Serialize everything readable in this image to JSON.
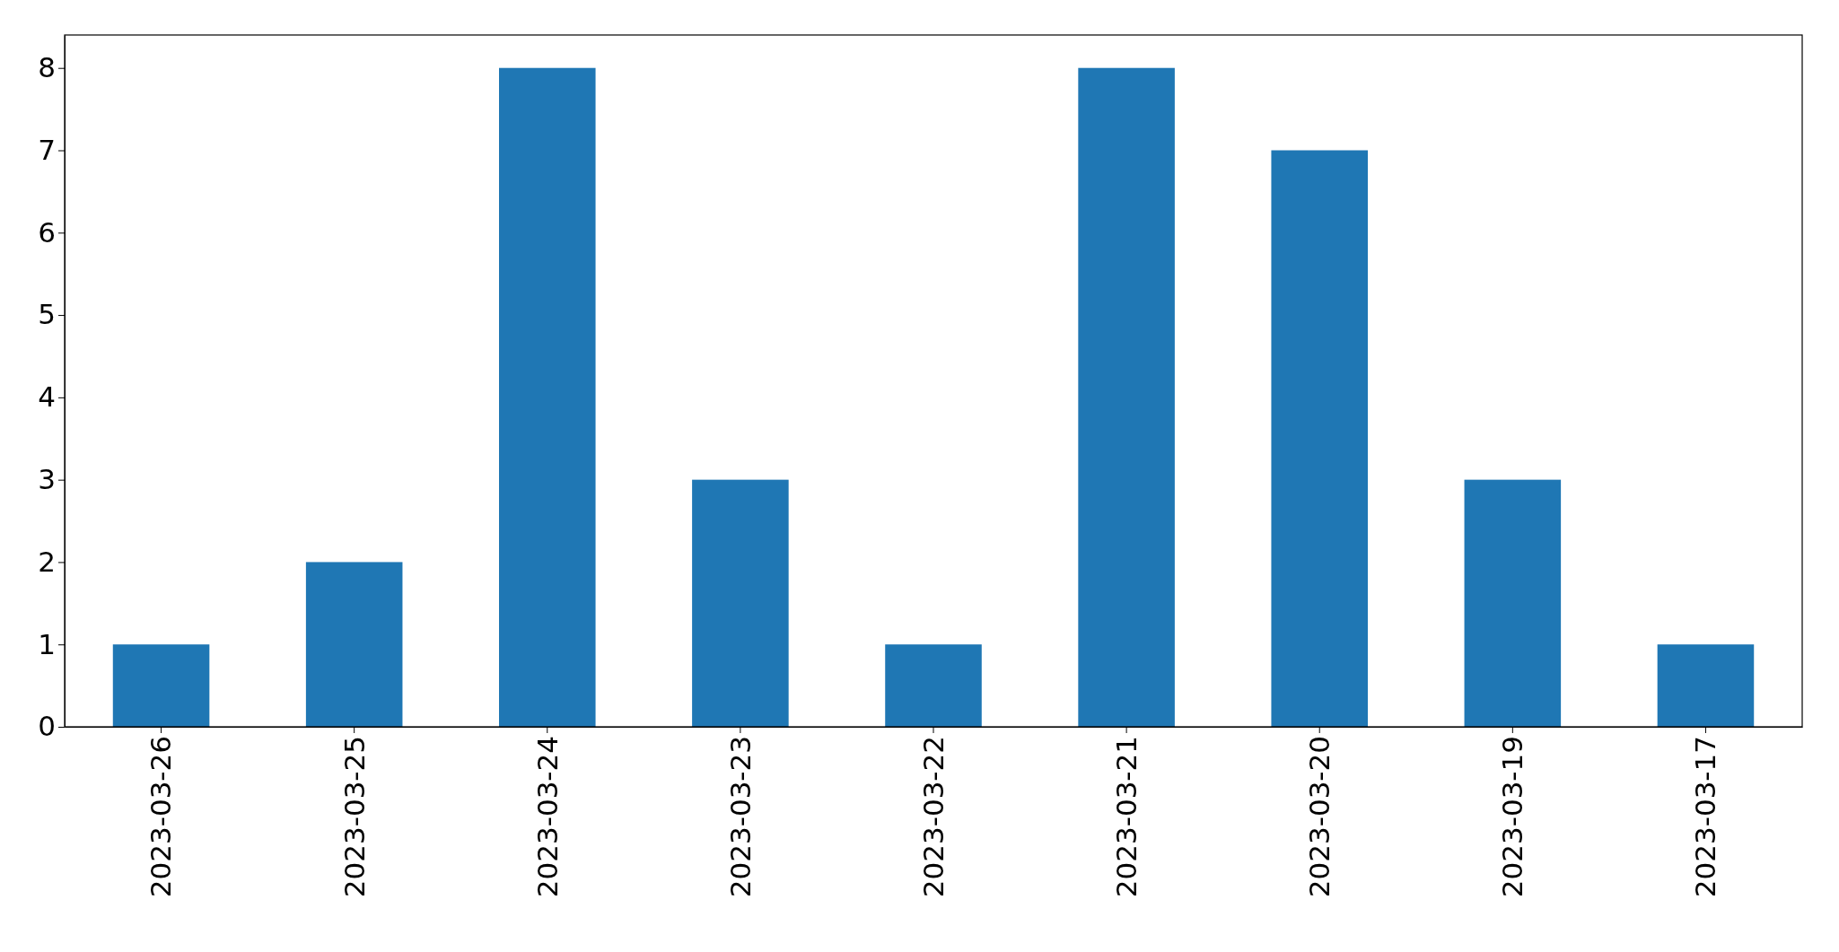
{
  "chart_data": {
    "type": "bar",
    "categories": [
      "2023-03-26",
      "2023-03-25",
      "2023-03-24",
      "2023-03-23",
      "2023-03-22",
      "2023-03-21",
      "2023-03-20",
      "2023-03-19",
      "2023-03-17"
    ],
    "values": [
      1,
      2,
      8,
      3,
      1,
      8,
      7,
      3,
      1
    ],
    "color": "#1f77b4",
    "ylim": [
      0,
      8.4
    ],
    "yticks": [
      0,
      1,
      2,
      3,
      4,
      5,
      6,
      7,
      8
    ],
    "grid": false
  }
}
